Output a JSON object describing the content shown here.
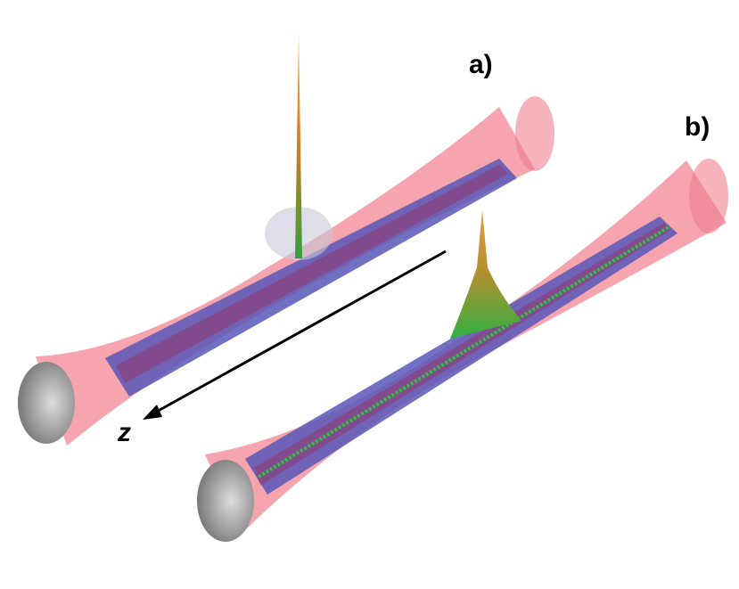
{
  "panels": [
    {
      "label": "a)"
    },
    {
      "label": "b)"
    }
  ],
  "axis": {
    "label": "z"
  }
}
